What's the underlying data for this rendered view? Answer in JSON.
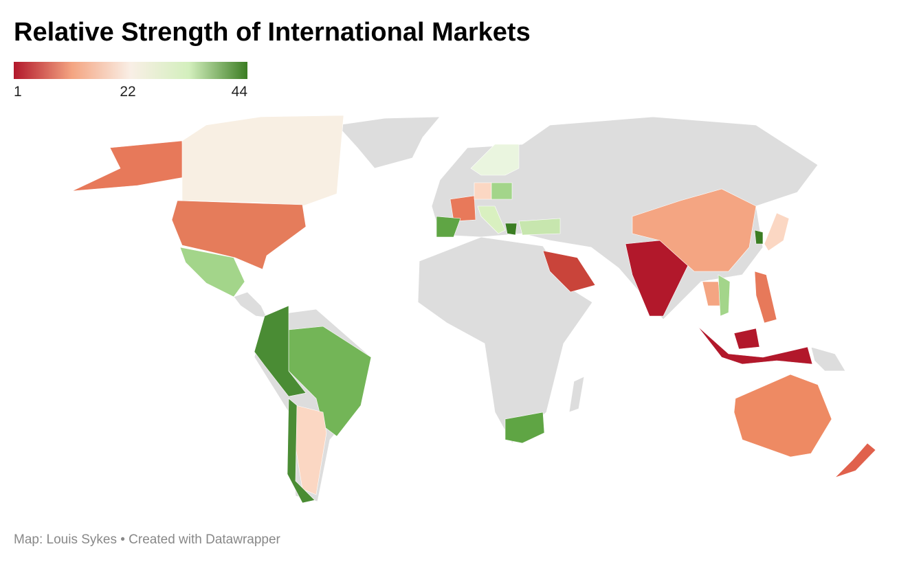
{
  "title": "Relative Strength of International Markets",
  "legend": {
    "range": [
      1,
      44
    ],
    "ticks": [
      1,
      22,
      44
    ],
    "colors": [
      "#b2182b",
      "#f4a582",
      "#f9efe6",
      "#d3efbd",
      "#3b7d23"
    ]
  },
  "footer": "Map: Louis Sykes • Created with Datawrapper"
}
